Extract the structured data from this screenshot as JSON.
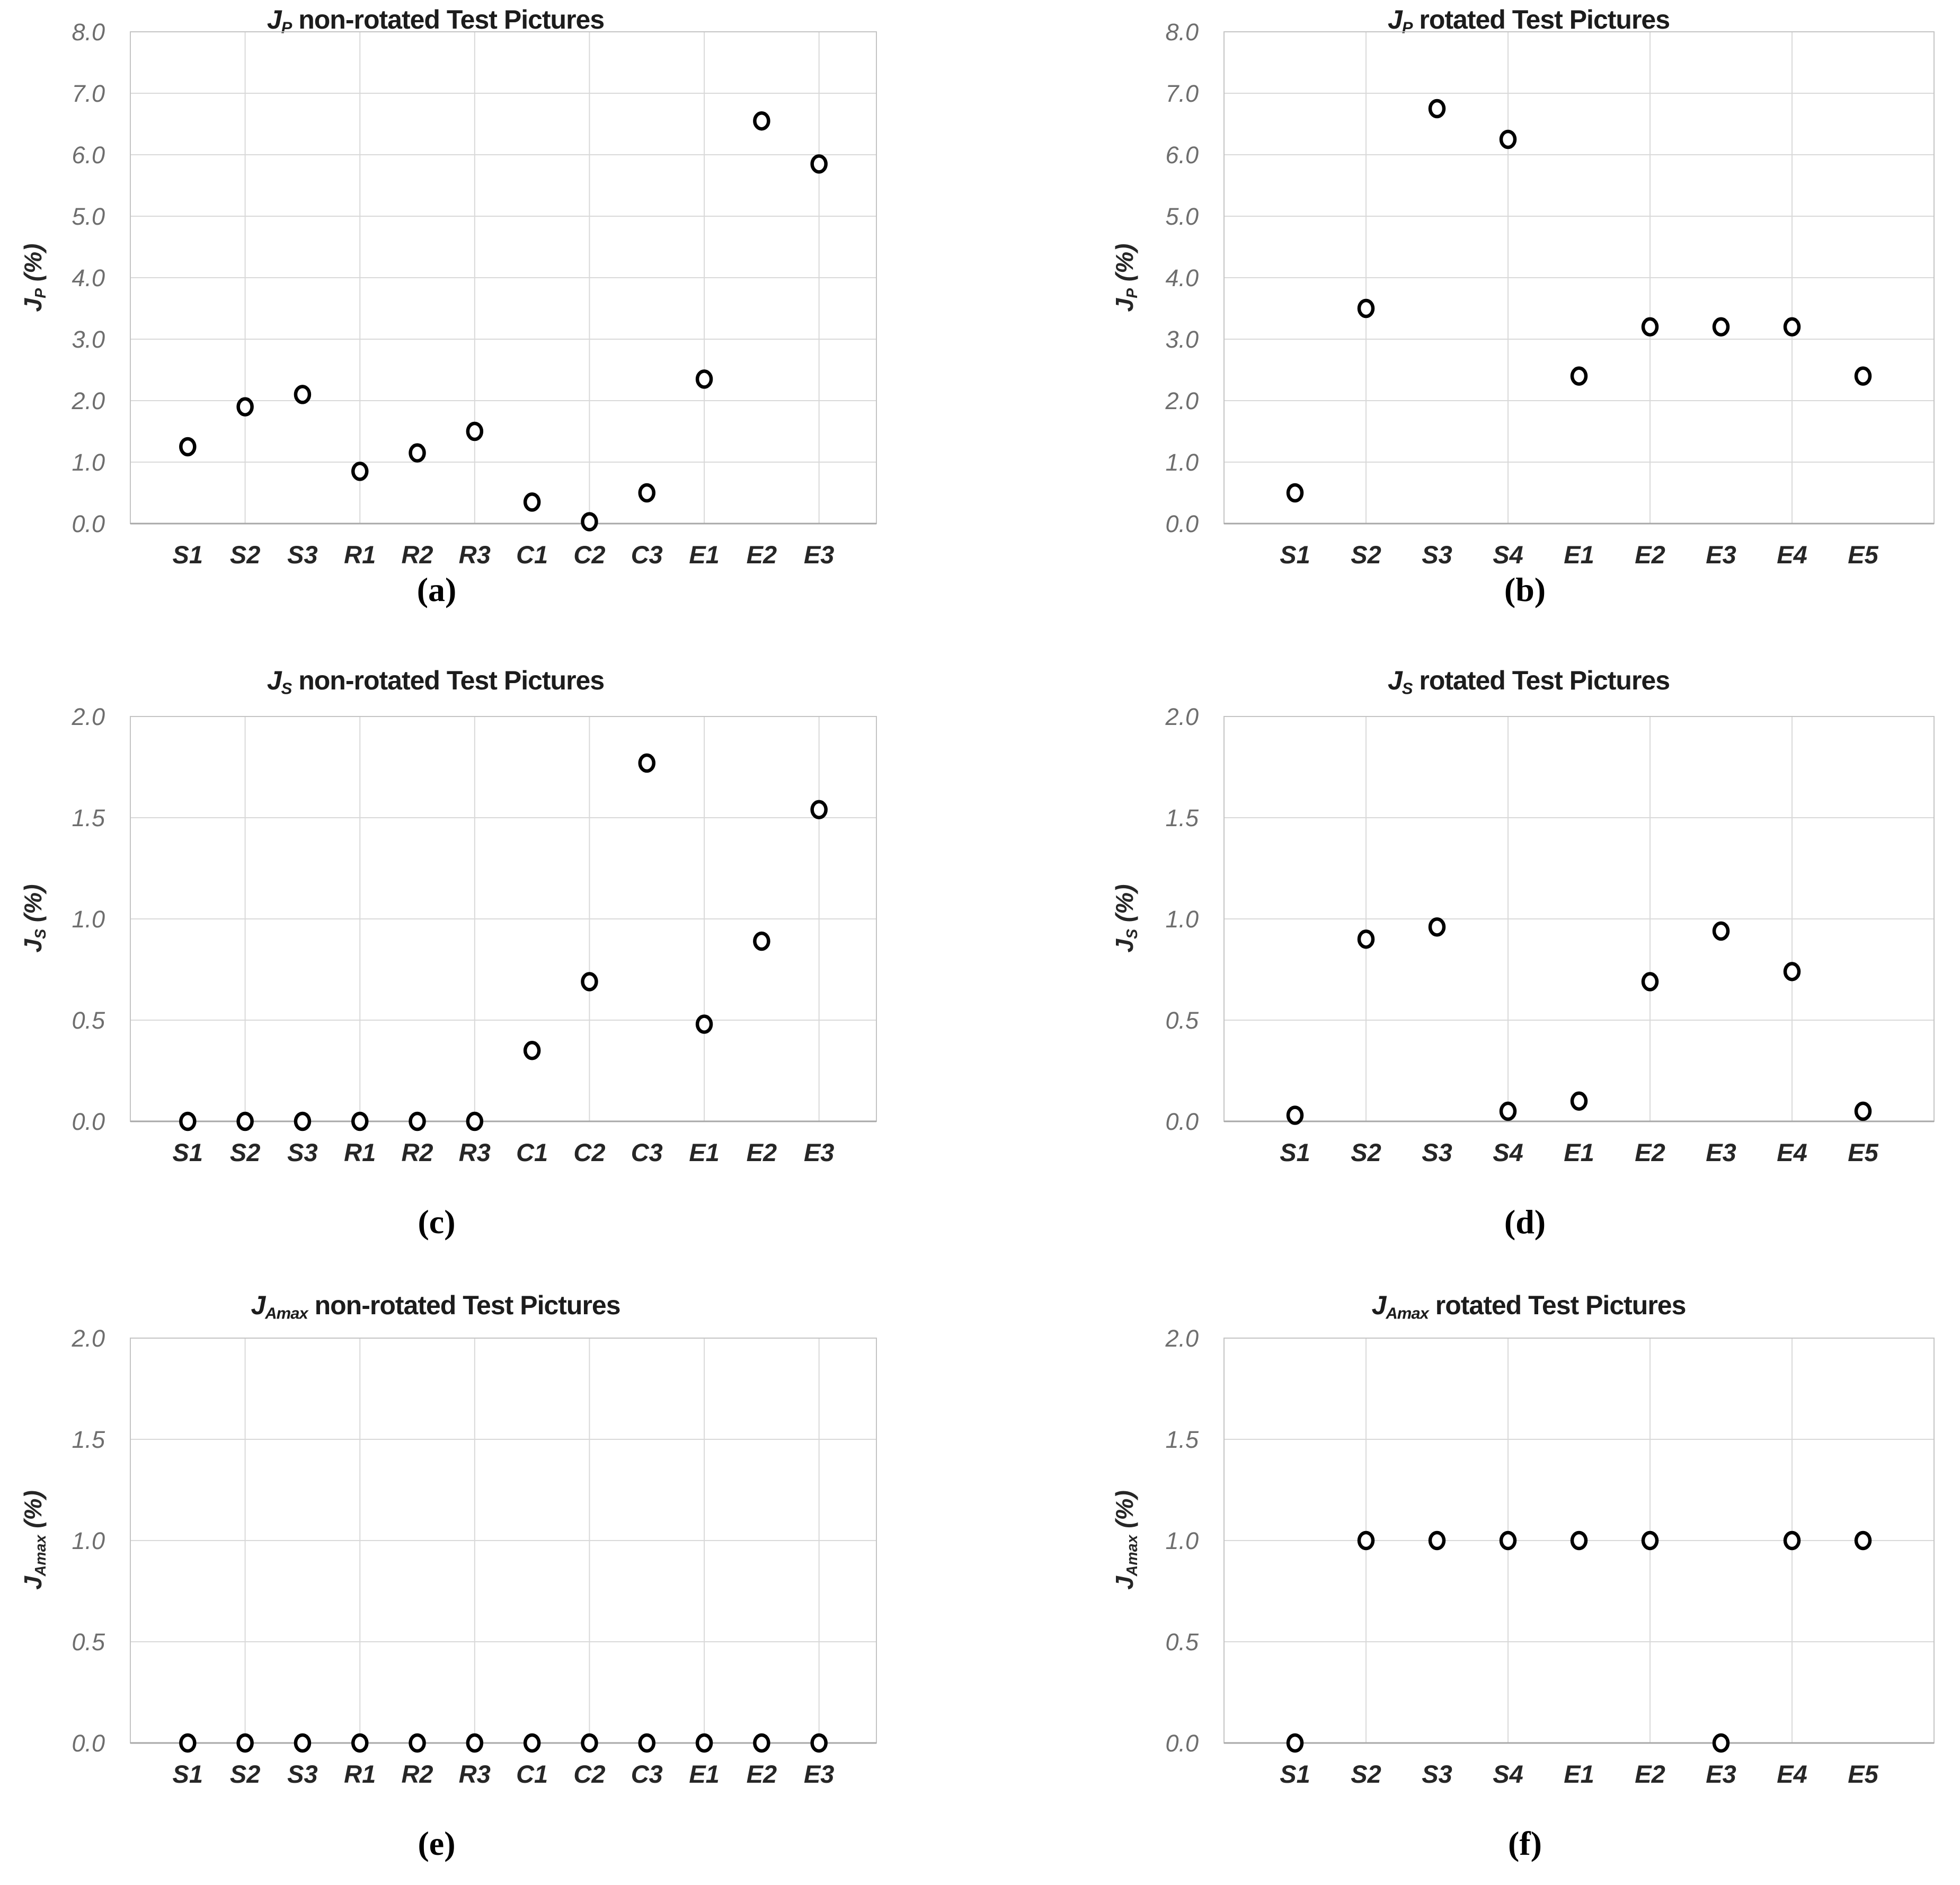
{
  "page": {
    "background": "#ffffff",
    "marker_color": "#000000",
    "marker_fill": "#ffffff",
    "grid_color": "#d9d9d9",
    "frame_color": "#c4c4c4",
    "axis_color": "#a8a8a8",
    "tick_color": "#6e6e6e",
    "category_color": "#262626",
    "title_color": "#1c1c1c"
  },
  "chart_data": [
    {
      "id": "a",
      "type": "scatter",
      "title": {
        "var": "J",
        "sub": "P",
        "rest": " non-rotated Test Pictures"
      },
      "ylabel": {
        "var": "J",
        "sub": "P",
        "rest": " (%)"
      },
      "caption": "(a)",
      "categories": [
        "S1",
        "S2",
        "S3",
        "R1",
        "R2",
        "R3",
        "C1",
        "C2",
        "C3",
        "E1",
        "E2",
        "E3"
      ],
      "values": [
        1.25,
        1.9,
        2.1,
        0.85,
        1.15,
        1.5,
        0.35,
        0.03,
        0.5,
        2.35,
        6.55,
        5.85
      ],
      "ylim": [
        0,
        8
      ],
      "ytick_step": 1,
      "yticks": [
        "0.0",
        "1.0",
        "2.0",
        "3.0",
        "4.0",
        "5.0",
        "6.0",
        "7.0",
        "8.0"
      ],
      "grid": true,
      "legend": "none"
    },
    {
      "id": "b",
      "type": "scatter",
      "title": {
        "var": "J",
        "sub": "P",
        "rest": " rotated Test Pictures"
      },
      "ylabel": {
        "var": "J",
        "sub": "P",
        "rest": " (%)"
      },
      "caption": "(b)",
      "categories": [
        "S1",
        "S2",
        "S3",
        "S4",
        "E1",
        "E2",
        "E3",
        "E4",
        "E5"
      ],
      "values": [
        0.5,
        3.5,
        6.75,
        6.25,
        2.4,
        3.2,
        3.2,
        3.2,
        2.4
      ],
      "ylim": [
        0,
        8
      ],
      "ytick_step": 1,
      "yticks": [
        "0.0",
        "1.0",
        "2.0",
        "3.0",
        "4.0",
        "5.0",
        "6.0",
        "7.0",
        "8.0"
      ],
      "grid": true,
      "legend": "none"
    },
    {
      "id": "c",
      "type": "scatter",
      "title": {
        "var": "J",
        "sub": "S",
        "rest": " non-rotated Test Pictures"
      },
      "ylabel": {
        "var": "J",
        "sub": "S",
        "rest": " (%)"
      },
      "caption": "(c)",
      "categories": [
        "S1",
        "S2",
        "S3",
        "R1",
        "R2",
        "R3",
        "C1",
        "C2",
        "C3",
        "E1",
        "E2",
        "E3"
      ],
      "values": [
        0.0,
        0.0,
        0.0,
        0.0,
        0.0,
        0.0,
        0.35,
        0.69,
        1.77,
        0.48,
        0.89,
        1.54
      ],
      "ylim": [
        0,
        2
      ],
      "ytick_step": 0.5,
      "yticks": [
        "0.0",
        "0.5",
        "1.0",
        "1.5",
        "2.0"
      ],
      "grid": true,
      "legend": "none"
    },
    {
      "id": "d",
      "type": "scatter",
      "title": {
        "var": "J",
        "sub": "S",
        "rest": " rotated Test Pictures"
      },
      "ylabel": {
        "var": "J",
        "sub": "S",
        "rest": " (%)"
      },
      "caption": "(d)",
      "categories": [
        "S1",
        "S2",
        "S3",
        "S4",
        "E1",
        "E2",
        "E3",
        "E4",
        "E5"
      ],
      "values": [
        0.03,
        0.9,
        0.96,
        0.05,
        0.1,
        0.69,
        0.94,
        0.74,
        0.05
      ],
      "ylim": [
        0,
        2
      ],
      "ytick_step": 0.5,
      "yticks": [
        "0.0",
        "0.5",
        "1.0",
        "1.5",
        "2.0"
      ],
      "grid": true,
      "legend": "none"
    },
    {
      "id": "e",
      "type": "scatter",
      "title": {
        "var": "J",
        "sub": "Amax",
        "rest": " non-rotated Test Pictures"
      },
      "ylabel": {
        "var": "J",
        "sub": "Amax",
        "rest": " (%)"
      },
      "caption": "(e)",
      "categories": [
        "S1",
        "S2",
        "S3",
        "R1",
        "R2",
        "R3",
        "C1",
        "C2",
        "C3",
        "E1",
        "E2",
        "E3"
      ],
      "values": [
        0.0,
        0.0,
        0.0,
        0.0,
        0.0,
        0.0,
        0.0,
        0.0,
        0.0,
        0.0,
        0.0,
        0.0
      ],
      "ylim": [
        0,
        2
      ],
      "ytick_step": 0.5,
      "yticks": [
        "0.0",
        "0.5",
        "1.0",
        "1.5",
        "2.0"
      ],
      "grid": true,
      "legend": "none"
    },
    {
      "id": "f",
      "type": "scatter",
      "title": {
        "var": "J",
        "sub": "Amax",
        "rest": " rotated Test Pictures"
      },
      "ylabel": {
        "var": "J",
        "sub": "Amax",
        "rest": " (%)"
      },
      "caption": "(f)",
      "categories": [
        "S1",
        "S2",
        "S3",
        "S4",
        "E1",
        "E2",
        "E3",
        "E4",
        "E5"
      ],
      "values": [
        0.0,
        1.0,
        1.0,
        1.0,
        1.0,
        1.0,
        0.0,
        1.0,
        1.0
      ],
      "ylim": [
        0,
        2
      ],
      "ytick_step": 0.5,
      "yticks": [
        "0.0",
        "0.5",
        "1.0",
        "1.5",
        "2.0"
      ],
      "grid": true,
      "legend": "none"
    }
  ]
}
